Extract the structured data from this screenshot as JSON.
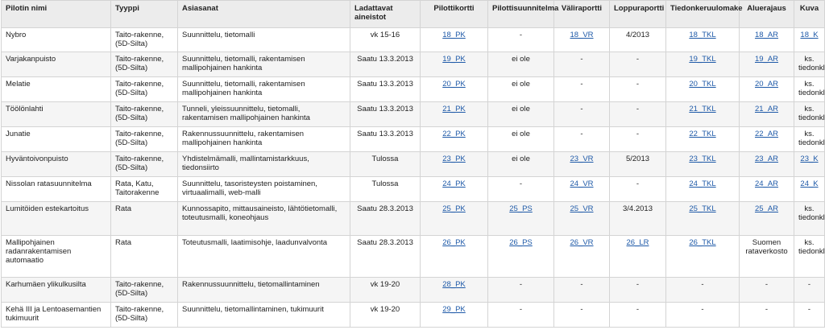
{
  "headers": [
    "Pilotin nimi",
    "Tyyppi",
    "Asiasanat",
    "Ladattavat aineistot",
    "Pilottikortti",
    "Pilottisuunnitelma",
    "Väliraportti",
    "Loppuraportti",
    "Tiedonkeruulomake",
    "Aluerajaus",
    "Kuva"
  ],
  "rows": [
    {
      "name": "Nybro",
      "type": "Taito-rakenne, (5D-Silta)",
      "keywords": "Suunnittelu, tietomalli",
      "data": "vk 15-16",
      "card": "18_PK",
      "plan": "-",
      "interim": "18_VR",
      "final": "4/2013",
      "form": "18_TKL",
      "area": "18_AR",
      "image": "18_K"
    },
    {
      "name": "Varjakanpuisto",
      "type": "Taito-rakenne, (5D-Silta)",
      "keywords": "Suunnittelu, tietomalli, rakentamisen mallipohjainen hankinta",
      "data": "Saatu 13.3.2013",
      "card": "19_PK",
      "plan": "ei ole",
      "interim": "-",
      "final": "-",
      "form": "19_TKL",
      "area": "19_AR",
      "image": "ks. tiedonkl."
    },
    {
      "name": "Melatie",
      "type": "Taito-rakenne, (5D-Silta)",
      "keywords": "Suunnittelu, tietomalli, rakentamisen mallipohjainen hankinta",
      "data": "Saatu 13.3.2013",
      "card": "20_PK",
      "plan": "ei ole",
      "interim": "-",
      "final": "-",
      "form": "20_TKL",
      "area": "20_AR",
      "image": "ks. tiedonkl."
    },
    {
      "name": "Töölönlahti",
      "type": "Taito-rakenne, (5D-Silta)",
      "keywords": "Tunneli, yleissuunnittelu, tietomalli, rakentamisen mallipohjainen hankinta",
      "data": "Saatu 13.3.2013",
      "card": "21_PK",
      "plan": "ei ole",
      "interim": "-",
      "final": "-",
      "form": "21_TKL",
      "area": "21_AR",
      "image": "ks. tiedonkl."
    },
    {
      "name": "Junatie",
      "type": "Taito-rakenne, (5D-Silta)",
      "keywords": "Rakennussuunnittelu, rakentamisen mallipohjainen hankinta",
      "data": "Saatu 13.3.2013",
      "card": "22_PK",
      "plan": "ei ole",
      "interim": "-",
      "final": "-",
      "form": "22_TKL",
      "area": "22_AR",
      "image": "ks. tiedonkl."
    },
    {
      "name": "Hyväntoivonpuisto",
      "type": "Taito-rakenne, (5D-Silta)",
      "keywords": "Yhdistelmämalli, mallintamistarkkuus, tiedonsiirto",
      "data": "Tulossa",
      "card": "23_PK",
      "plan": "ei ole",
      "interim": "23_VR",
      "final": "5/2013",
      "form": "23_TKL",
      "area": "23_AR",
      "image": "23_K"
    },
    {
      "name": "Nissolan ratasuunnitelma",
      "type": "Rata, Katu, Taitorakenne",
      "keywords": "Suunnittelu, tasoristeysten poistaminen, virtuaalimalli, web-malli",
      "data": "Tulossa",
      "card": "24_PK",
      "plan": "-",
      "interim": "24_VR",
      "final": "-",
      "form": "24_TKL",
      "area": "24_AR",
      "image": "24_K"
    },
    {
      "name": "Lumitöiden estekartoitus",
      "type": "Rata",
      "keywords": "Kunnossapito, mittausaineisto, lähtötietomalli, toteutusmalli, koneohjaus",
      "data": "Saatu 28.3.2013",
      "card": "25_PK",
      "plan": "25_PS",
      "interim": "25_VR",
      "final": "3/4.2013",
      "form": "25_TKL",
      "area": "25_AR",
      "image": "ks. tiedonkl."
    },
    {
      "name": "Mallipohjainen radanrakentamisen automaatio",
      "type": "Rata",
      "keywords": "Toteutusmalli, laatimisohje, laadunvalvonta",
      "data": "Saatu 28.3.2013",
      "card": "26_PK",
      "plan": "26_PS",
      "interim": "26_VR",
      "final": "26_LR",
      "form": "26_TKL",
      "area": "Suomen rataverkosto",
      "image": "ks. tiedonkl."
    },
    {
      "name": "Karhumäen ylikulkusilta",
      "type": "Taito-rakenne, (5D-Silta)",
      "keywords": "Rakennussuunnittelu, tietomallintaminen",
      "data": "vk 19-20",
      "card": "28_PK",
      "plan": "-",
      "interim": "-",
      "final": "-",
      "form": "-",
      "area": "-",
      "image": "-"
    },
    {
      "name": "Kehä III ja Lentoasemantien tukimuurit",
      "type": "Taito-rakenne, (5D-Silta)",
      "keywords": "Suunnittelu, tietomallintaminen, tukimuurit",
      "data": "vk 19-20",
      "card": "29_PK",
      "plan": "-",
      "interim": "-",
      "final": "-",
      "form": "-",
      "area": "-",
      "image": "-"
    }
  ]
}
